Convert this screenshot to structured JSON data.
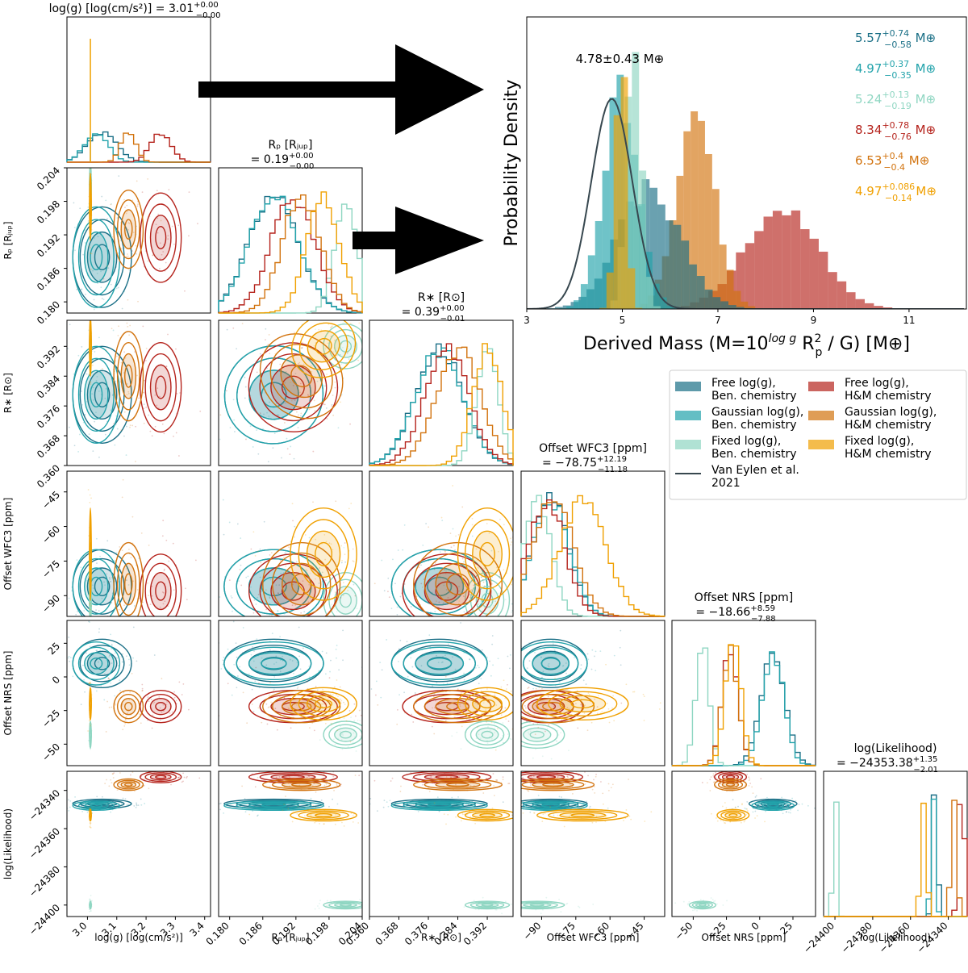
{
  "chart_data": {
    "type": "corner-plot-with-histogram",
    "colors": {
      "free_ben": "#1a6f86",
      "gauss_ben": "#22a3ab",
      "fixed_ben": "#8fd6c2",
      "free_hm": "#b5231c",
      "gauss_hm": "#d2730e",
      "fixed_hm": "#f0a000",
      "van_eylen": "#37474f"
    },
    "parameters": [
      {
        "key": "logg",
        "label": "log(g) [log(cm/s²)]",
        "title_main": "log(g) [log(cm/s²)] = 3.01",
        "title_sup": "+0.00",
        "title_sub": "−0.00",
        "range": [
          2.93,
          3.42
        ],
        "ticks": [
          "3.0",
          "3.1",
          "3.2",
          "3.3",
          "3.4"
        ],
        "tick_values": [
          3.0,
          3.1,
          3.2,
          3.3,
          3.4
        ]
      },
      {
        "key": "rp",
        "label": "Rₚ [Rⱼᵤₚ]",
        "title_line1": "Rₚ [Rⱼᵤₚ]",
        "title_main": "= 0.19",
        "title_sup": "+0.00",
        "title_sub": "−0.00",
        "range": [
          0.178,
          0.204
        ],
        "ticks": [
          "0.180",
          "0.186",
          "0.192",
          "0.198",
          "0.204"
        ],
        "tick_values": [
          0.18,
          0.186,
          0.192,
          0.198,
          0.204
        ]
      },
      {
        "key": "rs",
        "label": "R∗ [R⊙]",
        "title_line1": "R∗ [R⊙]",
        "title_main": "= 0.39",
        "title_sup": "+0.00",
        "title_sub": "−0.01",
        "range": [
          0.36,
          0.399
        ],
        "ticks": [
          "0.360",
          "0.368",
          "0.376",
          "0.384",
          "0.392"
        ],
        "tick_values": [
          0.36,
          0.368,
          0.376,
          0.384,
          0.392
        ]
      },
      {
        "key": "wfc3",
        "label": "Offset WFC3 [ppm]",
        "title_line1": "Offset WFC3 [ppm]",
        "title_main": "= −78.75",
        "title_sup": "+12.19",
        "title_sub": "−11.18",
        "range": [
          -99,
          -36
        ],
        "ticks": [
          "−90",
          "−75",
          "−60",
          "−45"
        ],
        "tick_values": [
          -90,
          -75,
          -60,
          -45
        ]
      },
      {
        "key": "nrs",
        "label": "Offset NRS [ppm]",
        "title_line1": "Offset NRS [ppm]",
        "title_main": "= −18.66",
        "title_sup": "+8.59",
        "title_sub": "−7.88",
        "range": [
          -66,
          42
        ],
        "ticks": [
          "−50",
          "−25",
          "0",
          "25"
        ],
        "tick_values": [
          -50,
          -25,
          0,
          25
        ]
      },
      {
        "key": "loglike",
        "label": "log(Likelihood)",
        "title_line1": "log(Likelihood)",
        "title_main": "= −24353.38",
        "title_sup": "+1.35",
        "title_sub": "−2.01",
        "range": [
          -24406,
          -24330
        ],
        "ticks": [
          "−24400",
          "−24380",
          "−24360",
          "−24340"
        ],
        "tick_values": [
          -24400,
          -24380,
          -24360,
          -24340
        ]
      }
    ],
    "fits": [
      {
        "name": "Free log(g), Ben. chemistry",
        "color_key": "free_ben",
        "logg": [
          3.05,
          0.05
        ],
        "rp": [
          0.188,
          0.0045
        ],
        "rs": [
          0.379,
          0.0065
        ],
        "wfc3": [
          -86,
          8
        ],
        "nrs": [
          10,
          9
        ],
        "loglike": [
          -24347,
          1.2
        ]
      },
      {
        "name": "Gaussian log(g), Ben. chemistry",
        "color_key": "gauss_ben",
        "logg": [
          3.03,
          0.04
        ],
        "rp": [
          0.188,
          0.0045
        ],
        "rs": [
          0.379,
          0.0065
        ],
        "wfc3": [
          -86,
          8
        ],
        "nrs": [
          10,
          8
        ],
        "loglike": [
          -24348,
          1.2
        ]
      },
      {
        "name": "Fixed log(g), Ben. chemistry",
        "color_key": "fixed_ben",
        "logg": [
          3.01,
          0.0015
        ],
        "rp": [
          0.201,
          0.002
        ],
        "rs": [
          0.392,
          0.003
        ],
        "wfc3": [
          -92,
          6
        ],
        "nrs": [
          -43,
          5
        ],
        "loglike": [
          -24400,
          1.0
        ]
      },
      {
        "name": "Free log(g), H&M chemistry",
        "color_key": "free_hm",
        "logg": [
          3.25,
          0.035
        ],
        "rp": [
          0.1915,
          0.004
        ],
        "rs": [
          0.381,
          0.006
        ],
        "wfc3": [
          -88,
          8
        ],
        "nrs": [
          -22,
          6
        ],
        "loglike": [
          -24333,
          1.5
        ]
      },
      {
        "name": "Gaussian log(g), H&M chemistry",
        "color_key": "gauss_hm",
        "logg": [
          3.14,
          0.025
        ],
        "rp": [
          0.193,
          0.0035
        ],
        "rs": [
          0.384,
          0.006
        ],
        "wfc3": [
          -85,
          9
        ],
        "nrs": [
          -22,
          6
        ],
        "loglike": [
          -24337,
          1.5
        ]
      },
      {
        "name": "Fixed log(g), H&M chemistry",
        "color_key": "fixed_hm",
        "logg": [
          3.01,
          0.0015
        ],
        "rp": [
          0.197,
          0.003
        ],
        "rs": [
          0.392,
          0.004
        ],
        "wfc3": [
          -72,
          10
        ],
        "nrs": [
          -20,
          6
        ],
        "loglike": [
          -24353,
          1.5
        ]
      }
    ],
    "mass_panel": {
      "xlabel_text": "Derived Mass (M=10",
      "xlabel_sup": "log g",
      "xlabel_mid": " R",
      "xlabel_rp_sup": "2",
      "xlabel_rp_sub": "p",
      "xlabel_end": " / G) [M⊕]",
      "ylabel": "Probability Density",
      "xlim": [
        3,
        12.2
      ],
      "ticks": [
        "3",
        "5",
        "7",
        "9",
        "11"
      ],
      "tick_values": [
        3,
        5,
        7,
        9,
        11
      ],
      "van_eylen_mean": 4.78,
      "van_eylen_sigma": 0.43,
      "van_eylen_label": "4.78±0.43 M⊕",
      "masses": [
        {
          "color_key": "free_ben",
          "median": 5.57,
          "plus": 0.74,
          "minus": 0.58,
          "label": "5.57",
          "sup": "+0.74",
          "sub": "−0.58",
          "unit": " M⊕"
        },
        {
          "color_key": "gauss_ben",
          "median": 4.97,
          "plus": 0.37,
          "minus": 0.35,
          "label": "4.97",
          "sup": "+0.37",
          "sub": "−0.35",
          "unit": " M⊕"
        },
        {
          "color_key": "fixed_ben",
          "median": 5.24,
          "plus": 0.13,
          "minus": 0.19,
          "label": "5.24",
          "sup": "+0.13",
          "sub": "−0.19",
          "unit": " M⊕"
        },
        {
          "color_key": "free_hm",
          "median": 8.34,
          "plus": 0.78,
          "minus": 0.76,
          "label": "8.34",
          "sup": "+0.78",
          "sub": "−0.76",
          "unit": " M⊕"
        },
        {
          "color_key": "gauss_hm",
          "median": 6.53,
          "plus": 0.4,
          "minus": 0.4,
          "label": "6.53",
          "sup": "+0.4",
          "sub": "−0.4",
          "unit": " M⊕"
        },
        {
          "color_key": "fixed_hm",
          "median": 4.97,
          "plus": 0.086,
          "minus": 0.14,
          "label": "4.97",
          "sup": "+0.086",
          "sub": "−0.14",
          "unit": " M⊕"
        }
      ]
    },
    "legend": {
      "placement": "right, below mass panel",
      "entries": [
        {
          "color_key": "free_ben",
          "line1": "Free log(g),",
          "line2": "Ben. chemistry",
          "kind": "patch"
        },
        {
          "color_key": "gauss_ben",
          "line1": "Gaussian log(g),",
          "line2": "Ben. chemistry",
          "kind": "patch"
        },
        {
          "color_key": "fixed_ben",
          "line1": "Fixed log(g),",
          "line2": "Ben. chemistry",
          "kind": "patch"
        },
        {
          "color_key": "van_eylen",
          "line1": "Van Eylen et al.",
          "line2": "2021",
          "kind": "line"
        },
        {
          "color_key": "free_hm",
          "line1": "Free log(g),",
          "line2": "H&M chemistry",
          "kind": "patch"
        },
        {
          "color_key": "gauss_hm",
          "line1": "Gaussian log(g),",
          "line2": "H&M chemistry",
          "kind": "patch"
        },
        {
          "color_key": "fixed_hm",
          "line1": "Fixed log(g),",
          "line2": "H&M chemistry",
          "kind": "patch"
        }
      ]
    }
  }
}
